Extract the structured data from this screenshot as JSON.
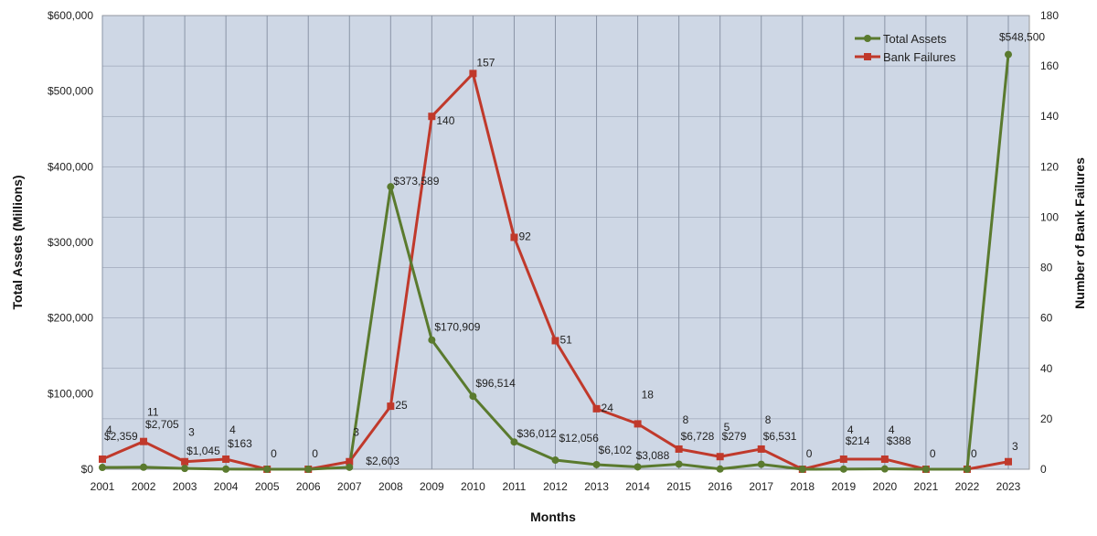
{
  "chart_data": {
    "type": "line",
    "xlabel": "Months",
    "ylabel_left": "Total Assets (Millions)",
    "ylabel_right": "Number of Bank Failures",
    "x": [
      "2001",
      "2002",
      "2003",
      "2004",
      "2005",
      "2006",
      "2007",
      "2008",
      "2009",
      "2010",
      "2011",
      "2012",
      "2013",
      "2014",
      "2015",
      "2016",
      "2017",
      "2018",
      "2019",
      "2020",
      "2021",
      "2022",
      "2023"
    ],
    "ylim_left": [
      0,
      600000
    ],
    "ylim_right": [
      0,
      180
    ],
    "yticks_left": [
      "$0",
      "$100,000",
      "$200,000",
      "$300,000",
      "$400,000",
      "$500,000",
      "$600,000"
    ],
    "yticks_right": [
      "0",
      "20",
      "40",
      "60",
      "80",
      "100",
      "120",
      "140",
      "160",
      "180"
    ],
    "grid": true,
    "legend_position": "top-right",
    "series": [
      {
        "name": "Total Assets",
        "axis": "left",
        "color": "#5a7a2e",
        "values": [
          2359,
          2705,
          1045,
          163,
          0,
          0,
          2603,
          373589,
          170909,
          96514,
          36012,
          12056,
          6102,
          3088,
          6728,
          279,
          6531,
          0,
          214,
          388,
          0,
          0,
          548500
        ],
        "labels": [
          "$2,359",
          "$2,705",
          "$1,045",
          "$163",
          "",
          "",
          "$2,603",
          "$373,589",
          "$170,909",
          "$96,514",
          "$36,012",
          "$12,056",
          "$6,102",
          "$3,088",
          "$6,728",
          "$279",
          "$6,531",
          "",
          "$214",
          "$388",
          "",
          "",
          "$548,500"
        ]
      },
      {
        "name": "Bank Failures",
        "axis": "right",
        "color": "#c0392b",
        "values": [
          4,
          11,
          3,
          4,
          0,
          0,
          3,
          25,
          140,
          157,
          92,
          51,
          24,
          18,
          8,
          5,
          8,
          0,
          4,
          4,
          0,
          0,
          3
        ],
        "labels": [
          "4",
          "11",
          "3",
          "4",
          "0",
          "0",
          "3",
          "25",
          "140",
          "157",
          "92",
          "51",
          "24",
          "18",
          "8",
          "5",
          "8",
          "0",
          "4",
          "4",
          "0",
          "0",
          "3"
        ]
      }
    ]
  }
}
